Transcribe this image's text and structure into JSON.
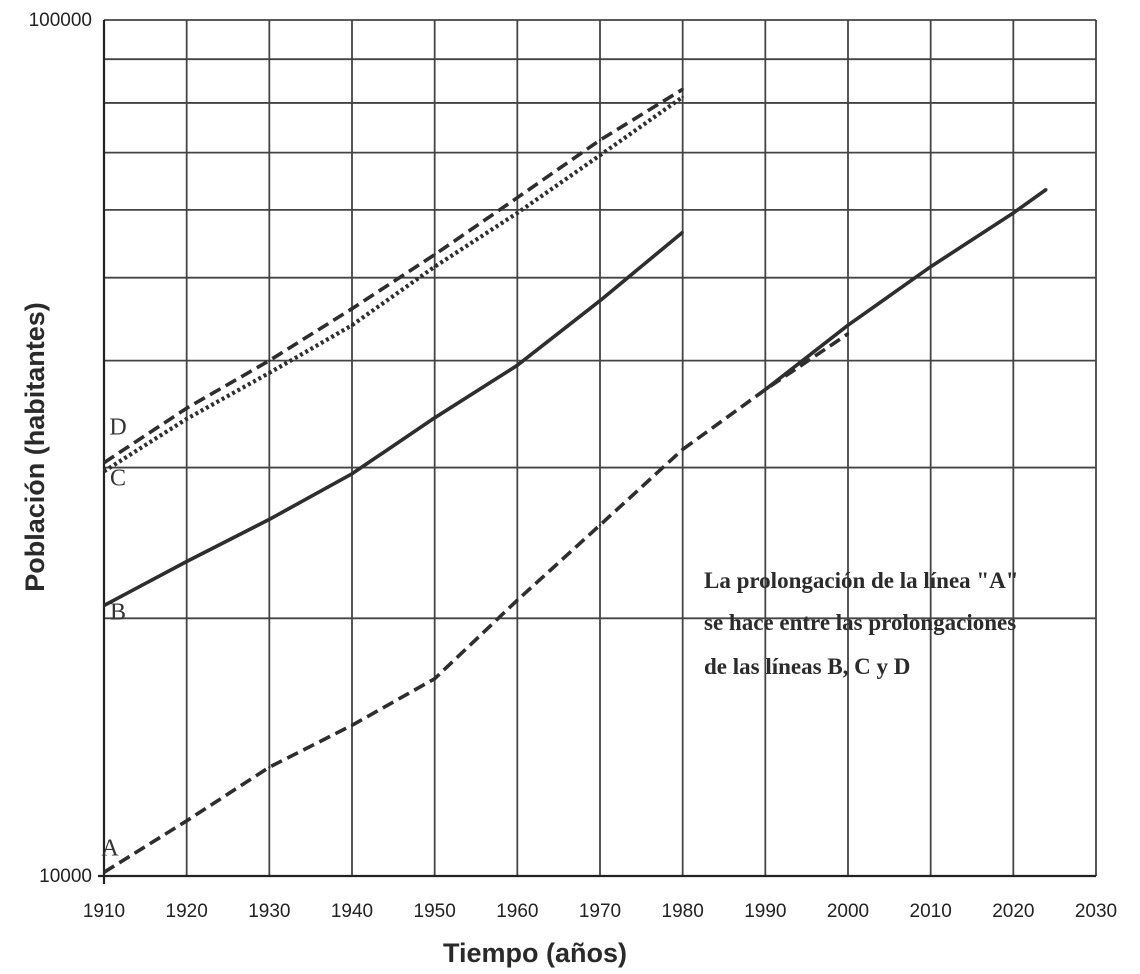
{
  "chart_data": {
    "type": "line",
    "title": "",
    "xlabel": "Tiempo (años)",
    "ylabel": "Población (habitantes)",
    "x_ticks": [
      "1910",
      "1920",
      "1930",
      "1940",
      "1950",
      "1960",
      "1970",
      "1980",
      "1990",
      "2000",
      "2010",
      "2020",
      "2030"
    ],
    "y_ticks": [
      "10000",
      "100000"
    ],
    "xlim": [
      1910,
      2030
    ],
    "ylim": [
      10000,
      100000
    ],
    "y_scale": "log",
    "grid": true,
    "series": [
      {
        "name": "A",
        "style": "dashed",
        "x": [
          1910,
          1920,
          1930,
          1940,
          1950,
          1960,
          1970,
          1980
        ],
        "y": [
          10100,
          11600,
          13400,
          15000,
          17000,
          21000,
          25700,
          31500
        ]
      },
      {
        "name": "B",
        "style": "solid",
        "x": [
          1910,
          1920,
          1930,
          1940,
          1950,
          1960,
          1970,
          1980
        ],
        "y": [
          20700,
          23300,
          26100,
          29500,
          34300,
          39500,
          47000,
          56500
        ]
      },
      {
        "name": "C",
        "style": "dotted",
        "x": [
          1910,
          1920,
          1930,
          1940,
          1950,
          1960,
          1970,
          1980
        ],
        "y": [
          29700,
          34200,
          38700,
          44000,
          51500,
          59500,
          69500,
          81300
        ]
      },
      {
        "name": "D",
        "style": "dashed",
        "x": [
          1910,
          1920,
          1930,
          1940,
          1950,
          1960,
          1970,
          1980
        ],
        "y": [
          30400,
          35200,
          40000,
          46000,
          53200,
          62000,
          72400,
          83000
        ]
      },
      {
        "name": "",
        "style": "dashed",
        "x": [
          1980,
          1990,
          2000
        ],
        "y": [
          31500,
          37000,
          43000
        ]
      },
      {
        "name": "",
        "style": "solid",
        "x": [
          1990,
          2000,
          2010,
          2020,
          2024
        ],
        "y": [
          37000,
          44000,
          51500,
          59500,
          63400
        ]
      }
    ],
    "annotation": {
      "lines": [
        "La prolongación de la línea \"A\"",
        "se hace entre las prolongaciones",
        "de las líneas B, C y D"
      ]
    }
  }
}
